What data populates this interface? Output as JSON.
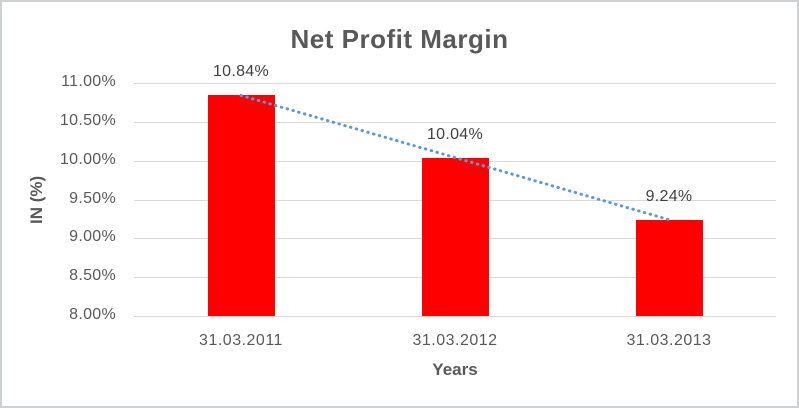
{
  "chart_data": {
    "type": "bar",
    "title": "Net Profit Margin",
    "xlabel": "Years",
    "ylabel": "IN (%)",
    "categories": [
      "31.03.2011",
      "31.03.2012",
      "31.03.2013"
    ],
    "values": [
      10.84,
      10.04,
      9.24
    ],
    "data_labels": [
      "10.84%",
      "10.04%",
      "9.24%"
    ],
    "y_ticks": [
      {
        "value": 11.0,
        "label": "11.00%"
      },
      {
        "value": 10.5,
        "label": "10.50%"
      },
      {
        "value": 10.0,
        "label": "10.00%"
      },
      {
        "value": 9.5,
        "label": "9.50%"
      },
      {
        "value": 9.0,
        "label": "9.00%"
      },
      {
        "value": 8.5,
        "label": "8.50%"
      },
      {
        "value": 8.0,
        "label": "8.00%"
      }
    ],
    "ylim": [
      8.0,
      11.0
    ],
    "grid": true,
    "legend": "none",
    "bar_color": "#ff0000",
    "trendline": {
      "type": "linear",
      "style": "dotted",
      "color": "#5b9bd5",
      "start_value": 10.84,
      "end_value": 9.24
    },
    "text_color": "#595959",
    "gridline_color": "#d9d9d9"
  }
}
